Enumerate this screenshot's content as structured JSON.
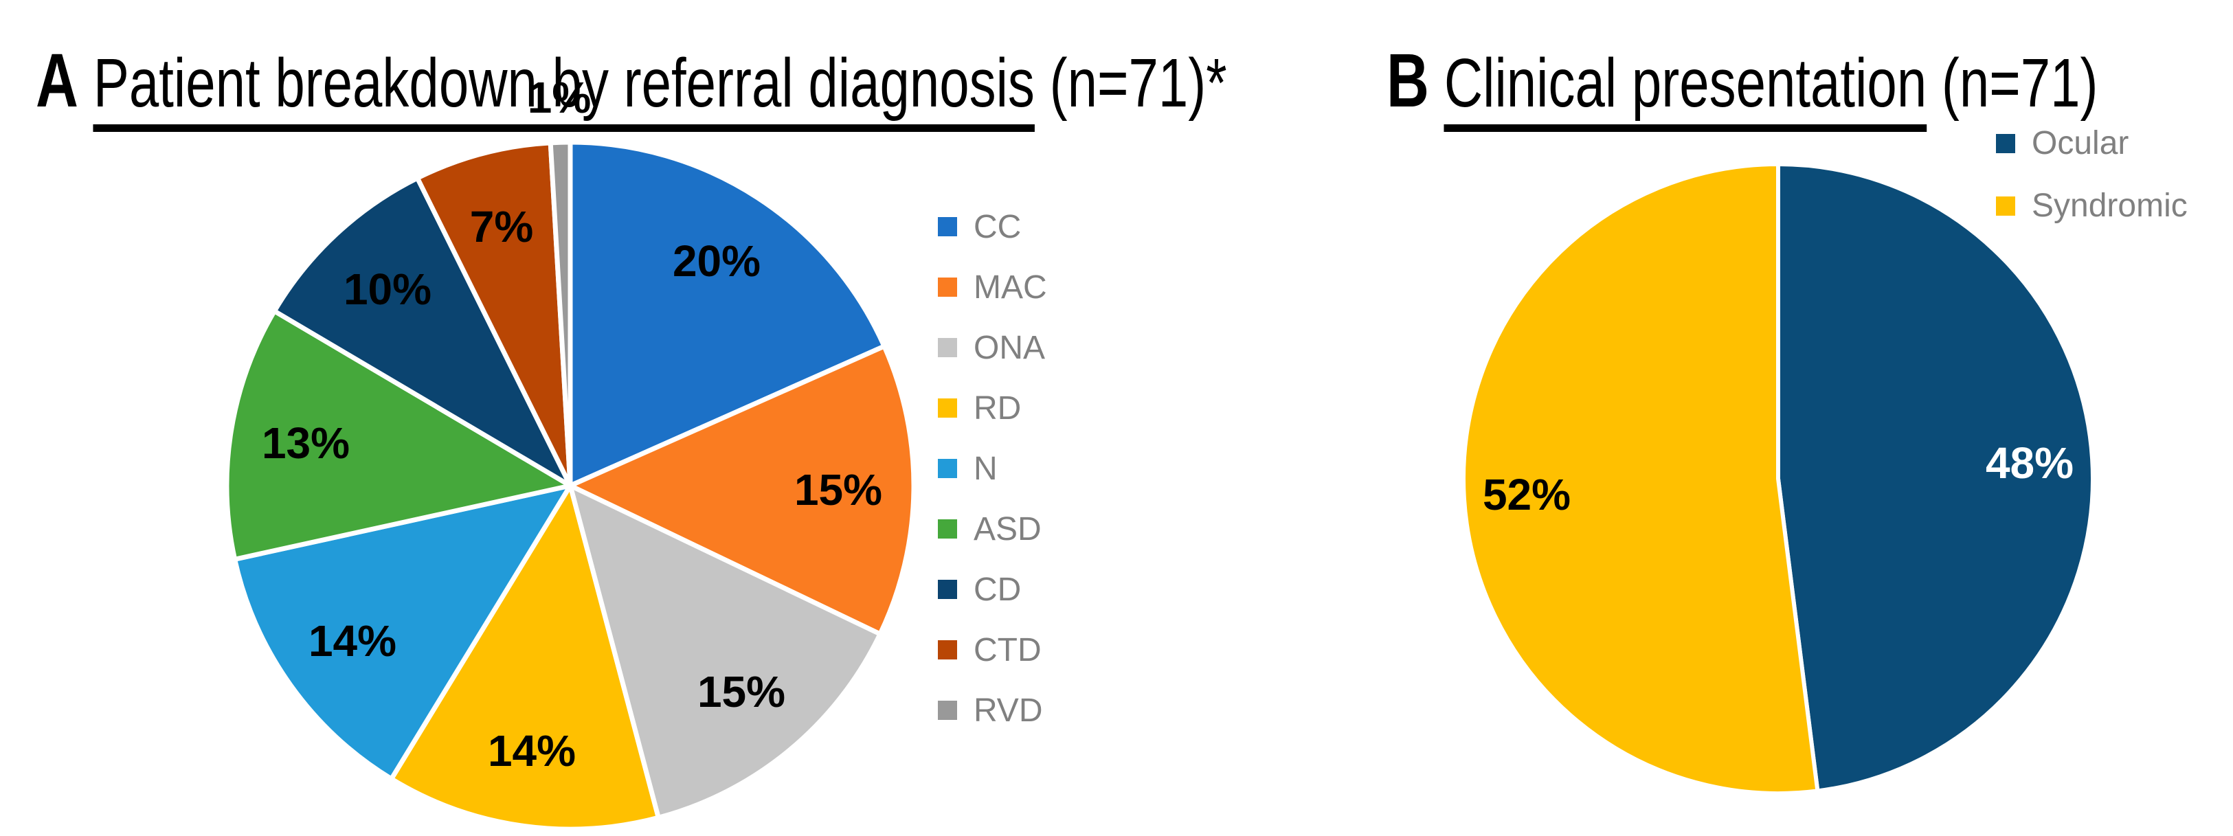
{
  "figure": {
    "panel_a": {
      "letter": "A",
      "title": "Patient breakdown by referral diagnosis",
      "suffix": " (n=71)*"
    },
    "panel_b": {
      "letter": "B",
      "title": "Clinical presentation",
      "suffix": " (n=71)"
    }
  },
  "colors": {
    "background": "#FFFFFF",
    "legend_text": "#808080",
    "label_text": "#000000",
    "slice_separator": "#FFFFFF"
  },
  "chart_data": [
    {
      "type": "pie",
      "panel": "A",
      "title": "Patient breakdown by referral diagnosis (n=71)*",
      "legend_position": "right",
      "start_angle_deg": 0,
      "direction": "clockwise",
      "slices": [
        {
          "name": "CC",
          "value": 20,
          "percent_label": "20%",
          "color": "#1C71C7"
        },
        {
          "name": "MAC",
          "value": 15,
          "percent_label": "15%",
          "color": "#FA7C21"
        },
        {
          "name": "ONA",
          "value": 15,
          "percent_label": "15%",
          "color": "#C5C5C5"
        },
        {
          "name": "RD",
          "value": 14,
          "percent_label": "14%",
          "color": "#FFC000"
        },
        {
          "name": "N",
          "value": 14,
          "percent_label": "14%",
          "color": "#229BD9"
        },
        {
          "name": "ASD",
          "value": 13,
          "percent_label": "13%",
          "color": "#45A83B"
        },
        {
          "name": "CD",
          "value": 10,
          "percent_label": "10%",
          "color": "#0B4470"
        },
        {
          "name": "CTD",
          "value": 7,
          "percent_label": "7%",
          "color": "#B94604"
        },
        {
          "name": "RVD",
          "value": 1,
          "percent_label": "1%",
          "color": "#999999",
          "label_position": "outside"
        }
      ]
    },
    {
      "type": "pie",
      "panel": "B",
      "title": "Clinical presentation (n=71)",
      "legend_position": "top-right",
      "start_angle_deg": 0,
      "direction": "clockwise",
      "slices": [
        {
          "name": "Ocular",
          "value": 48,
          "percent_label": "48%",
          "color": "#0B4C78",
          "label_color": "#FFFFFF"
        },
        {
          "name": "Syndromic",
          "value": 52,
          "percent_label": "52%",
          "color": "#FFC000"
        }
      ]
    }
  ]
}
